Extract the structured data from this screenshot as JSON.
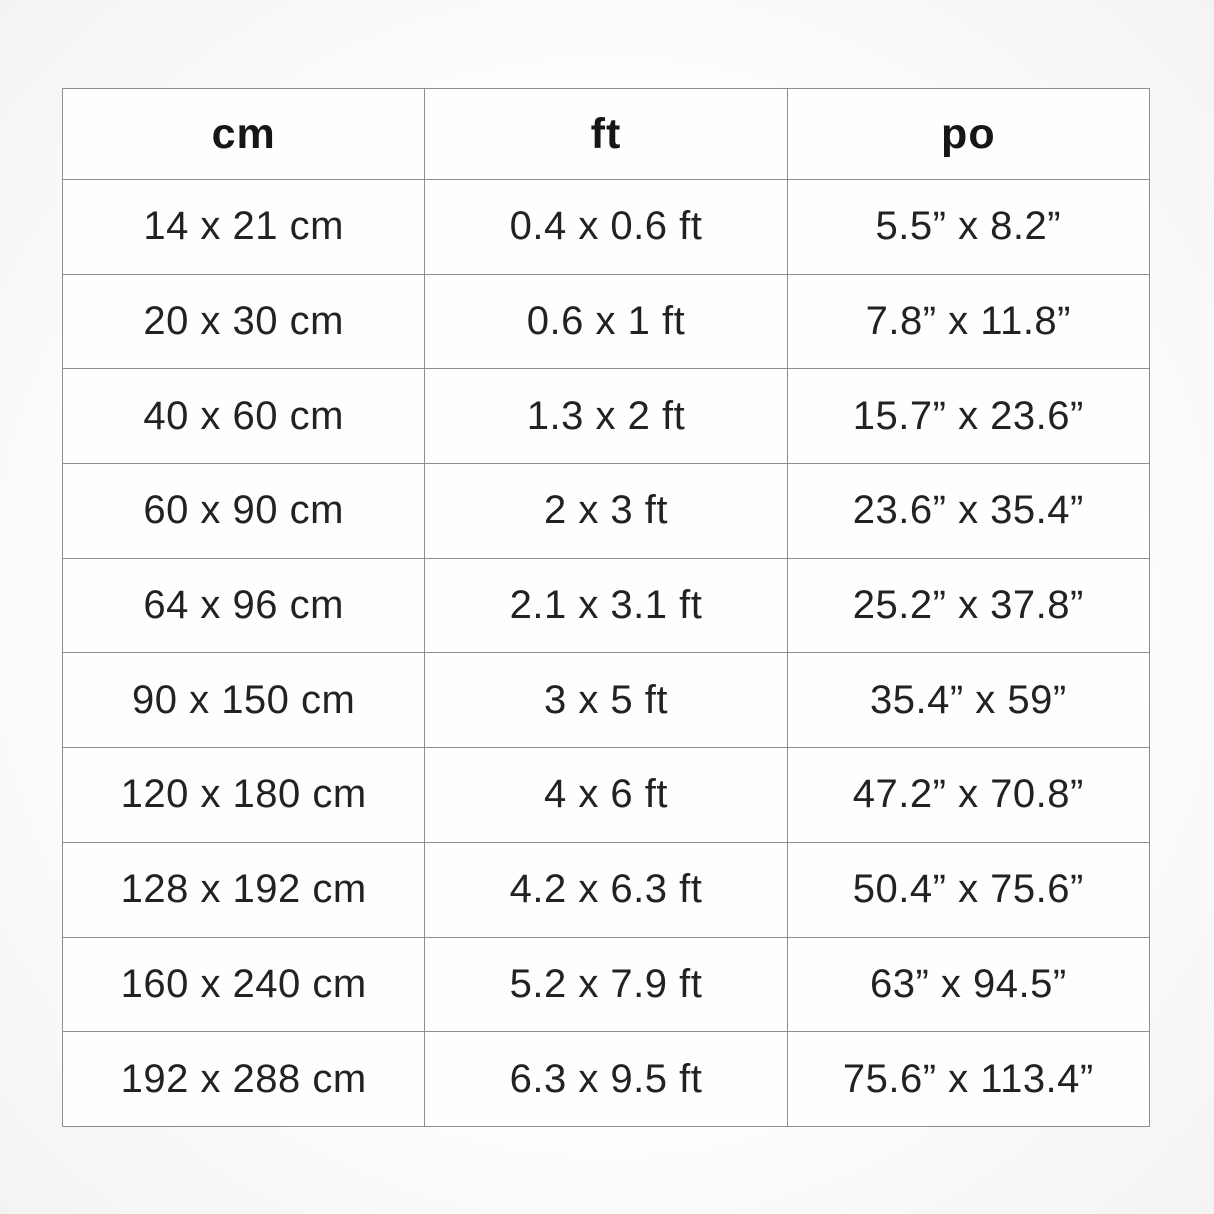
{
  "chart_data": {
    "type": "table",
    "title": "",
    "columns": [
      "cm",
      "ft",
      "po"
    ],
    "rows": [
      [
        "14 x 21 cm",
        "0.4 x 0.6 ft",
        "5.5” x 8.2”"
      ],
      [
        "20 x 30 cm",
        "0.6 x 1 ft",
        "7.8” x 11.8”"
      ],
      [
        "40 x 60 cm",
        "1.3 x 2 ft",
        "15.7” x 23.6”"
      ],
      [
        "60 x 90 cm",
        "2 x 3 ft",
        "23.6” x 35.4”"
      ],
      [
        "64 x 96 cm",
        "2.1 x 3.1 ft",
        "25.2” x 37.8”"
      ],
      [
        "90 x 150 cm",
        "3 x 5 ft",
        "35.4” x 59”"
      ],
      [
        "120 x 180 cm",
        "4 x 6 ft",
        "47.2” x 70.8”"
      ],
      [
        "128 x 192 cm",
        "4.2 x 6.3 ft",
        "50.4” x 75.6”"
      ],
      [
        "160 x 240 cm",
        "5.2 x 7.9 ft",
        "63” x 94.5”"
      ],
      [
        "192 x 288 cm",
        "6.3 x 9.5 ft",
        "75.6” x 113.4”"
      ]
    ],
    "layout": {
      "grid": true,
      "border_color": "#8e8e8e",
      "background_color": "#fefefe",
      "text_color": "#222222",
      "column_alignment": [
        "center",
        "center",
        "center"
      ]
    }
  }
}
